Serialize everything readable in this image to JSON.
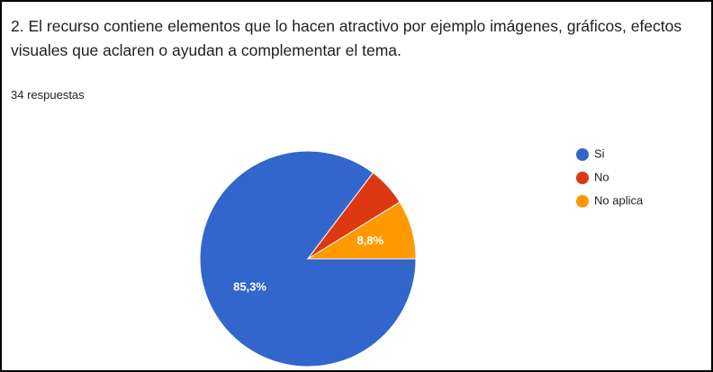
{
  "chart_data": {
    "type": "pie",
    "title": "2. El recurso contiene elementos que lo hacen atractivo por ejemplo imágenes, gráficos, efectos visuales que aclaren o ayudan a complementar el tema.",
    "subtitle": "34 respuestas",
    "categories": [
      "Si",
      "No",
      "No aplica"
    ],
    "values": [
      85.3,
      5.9,
      8.8
    ],
    "value_labels": [
      "85,3%",
      null,
      "8,8%"
    ],
    "colors": [
      "#3366cc",
      "#dc3912",
      "#ff9900"
    ],
    "legend": "right"
  }
}
